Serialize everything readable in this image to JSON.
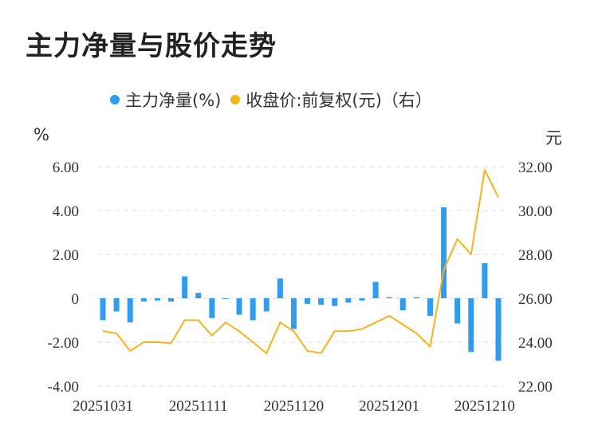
{
  "title": "主力净量与股价走势",
  "legend": {
    "net": "主力净量(%)",
    "price": "收盘价:前复权(元)（右）"
  },
  "units": {
    "left": "%",
    "right": "元"
  },
  "colors": {
    "net": "#2f9cee",
    "price": "#f4b51c",
    "grid": "#dddddd"
  },
  "chart_data": {
    "type": "bar+line",
    "x_tick_labels": [
      "20251031",
      "20251111",
      "20251120",
      "20251201",
      "20251210"
    ],
    "y_left": {
      "ticks": [
        "6.00",
        "4.00",
        "2.00",
        "0",
        "-2.00",
        "-4.00"
      ],
      "range": [
        -4,
        6
      ]
    },
    "y_right": {
      "ticks": [
        "32.00",
        "30.00",
        "28.00",
        "26.00",
        "24.00",
        "22.00"
      ],
      "range": [
        22,
        32
      ]
    },
    "series": [
      {
        "name": "主力净量(%)",
        "type": "bar",
        "axis": "left",
        "values": [
          -1.0,
          -0.6,
          -1.1,
          -0.15,
          -0.1,
          -0.15,
          1.0,
          0.25,
          -0.9,
          0.0,
          -0.75,
          -1.0,
          -0.6,
          0.9,
          -1.4,
          -0.25,
          -0.3,
          -0.35,
          -0.2,
          -0.1,
          0.75,
          0.05,
          -0.55,
          0.05,
          -0.8,
          4.15,
          -1.15,
          -2.45,
          1.6,
          -2.85
        ]
      },
      {
        "name": "收盘价:前复权(元)（右）",
        "type": "line",
        "axis": "right",
        "values": [
          24.5,
          24.4,
          23.6,
          24.0,
          24.0,
          23.95,
          25.0,
          25.0,
          24.3,
          24.9,
          24.5,
          24.0,
          23.5,
          24.9,
          24.5,
          23.6,
          23.5,
          24.5,
          24.5,
          24.6,
          24.9,
          25.2,
          24.8,
          24.4,
          23.8,
          27.3,
          28.7,
          28.0,
          31.85,
          30.6
        ]
      }
    ]
  }
}
